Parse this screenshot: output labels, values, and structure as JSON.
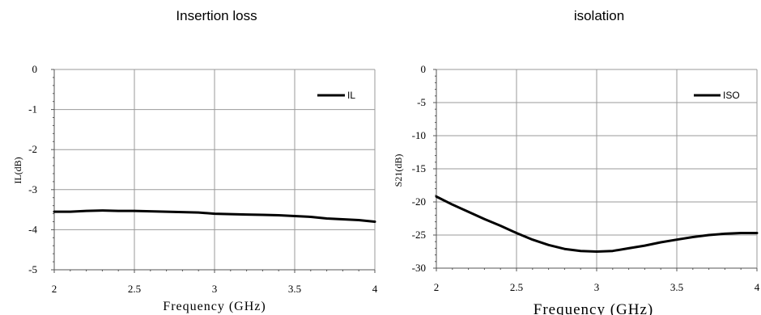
{
  "chart_data": [
    {
      "type": "line",
      "title": "Insertion loss",
      "xlabel": "Frequency (GHz)",
      "ylabel": "IL(dB)",
      "xlim": [
        2,
        4
      ],
      "ylim": [
        -5,
        0
      ],
      "x_ticks": [
        "2",
        "2.5",
        "3",
        "3.5",
        "4"
      ],
      "y_ticks": [
        "0",
        "-1",
        "-2",
        "-3",
        "-4",
        "-5"
      ],
      "grid": true,
      "legend_position": "top-right",
      "series": [
        {
          "name": "IL",
          "color": "#000000",
          "x": [
            2.0,
            2.1,
            2.2,
            2.3,
            2.4,
            2.5,
            2.6,
            2.7,
            2.8,
            2.9,
            3.0,
            3.1,
            3.2,
            3.3,
            3.4,
            3.5,
            3.6,
            3.7,
            3.8,
            3.9,
            4.0
          ],
          "y": [
            -3.55,
            -3.55,
            -3.53,
            -3.52,
            -3.53,
            -3.53,
            -3.54,
            -3.55,
            -3.56,
            -3.57,
            -3.6,
            -3.61,
            -3.62,
            -3.63,
            -3.64,
            -3.66,
            -3.68,
            -3.72,
            -3.74,
            -3.76,
            -3.8
          ]
        }
      ]
    },
    {
      "type": "line",
      "title": "isolation",
      "xlabel": "Frequency (GHz)",
      "ylabel": "S21(dB)",
      "xlim": [
        2,
        4
      ],
      "ylim": [
        -30,
        0
      ],
      "x_ticks": [
        "2",
        "2.5",
        "3",
        "3.5",
        "4"
      ],
      "y_ticks": [
        "0",
        "-5",
        "-10",
        "-15",
        "-20",
        "-25",
        "-30"
      ],
      "grid": true,
      "legend_position": "top-right",
      "series": [
        {
          "name": "ISO",
          "color": "#000000",
          "x": [
            2.0,
            2.1,
            2.2,
            2.3,
            2.4,
            2.5,
            2.6,
            2.7,
            2.8,
            2.9,
            3.0,
            3.1,
            3.2,
            3.3,
            3.4,
            3.5,
            3.6,
            3.7,
            3.8,
            3.9,
            4.0
          ],
          "y": [
            -19.2,
            -20.4,
            -21.5,
            -22.6,
            -23.6,
            -24.7,
            -25.7,
            -26.5,
            -27.1,
            -27.4,
            -27.5,
            -27.4,
            -27.0,
            -26.6,
            -26.1,
            -25.7,
            -25.3,
            -25.0,
            -24.8,
            -24.7,
            -24.7
          ]
        }
      ]
    }
  ]
}
